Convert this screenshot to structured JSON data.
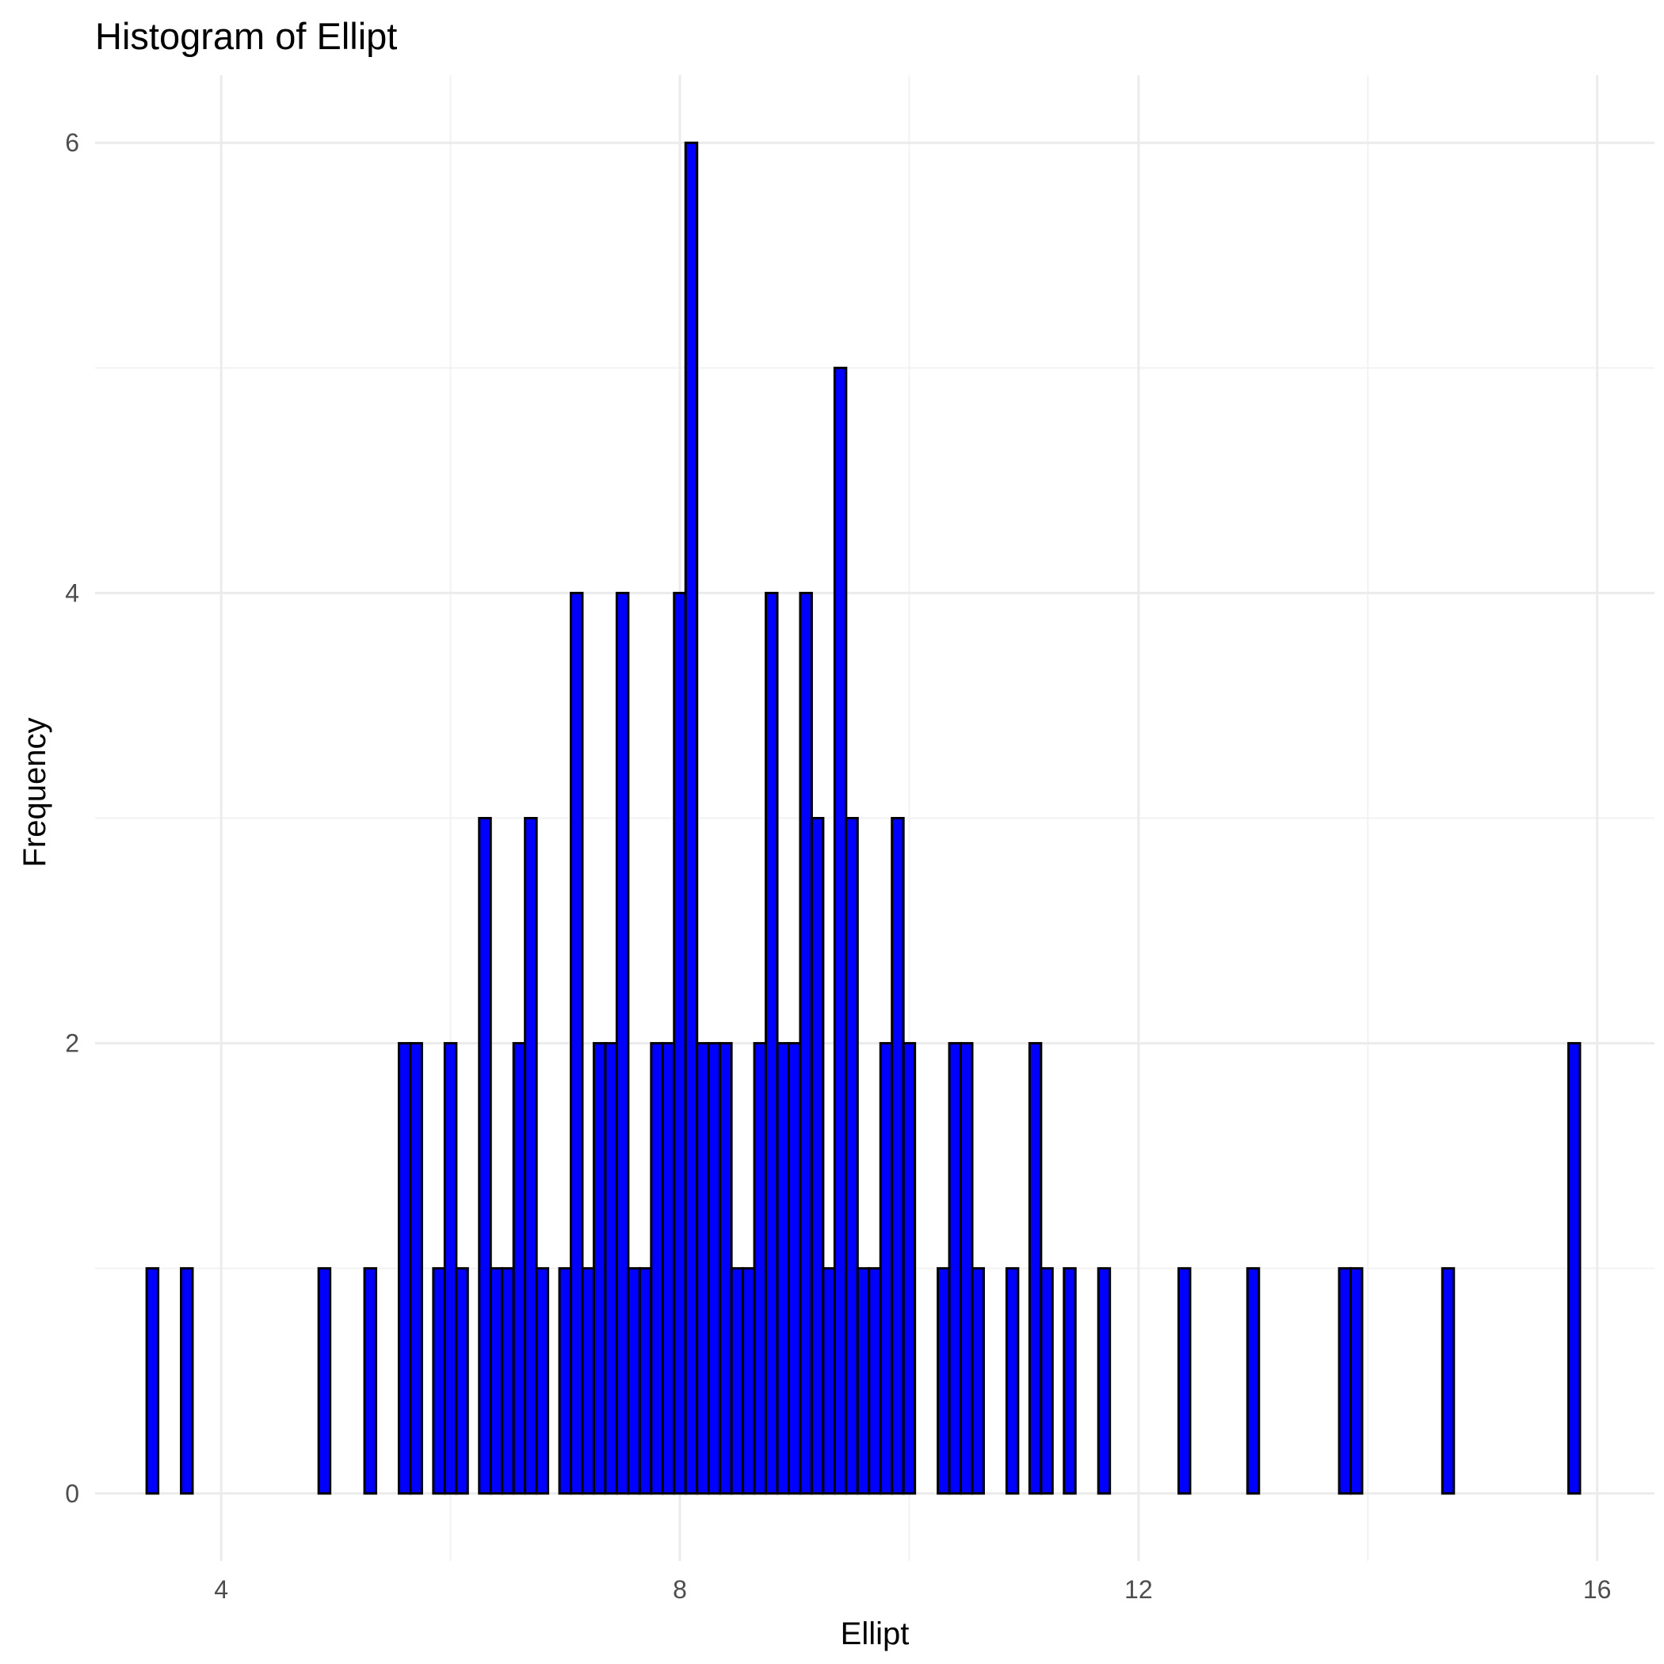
{
  "chart_data": {
    "type": "bar",
    "title": "Histogram of Ellipt",
    "xlabel": "Ellipt",
    "ylabel": "Frequency",
    "bar_fill": "#0000ff",
    "bar_outline": "#000000",
    "grid_color": "#ebebeb",
    "grid": true,
    "xlim": [
      2.9,
      16.5
    ],
    "ylim": [
      -0.3,
      6.3
    ],
    "x_ticks": [
      4,
      8,
      12,
      16
    ],
    "x_tick_labels": [
      "4",
      "8",
      "12",
      "16"
    ],
    "x_minor_ticks": [
      6,
      10,
      14
    ],
    "y_ticks": [
      0,
      2,
      4,
      6
    ],
    "y_tick_labels": [
      "0",
      "2",
      "4",
      "6"
    ],
    "y_minor_ticks": [
      1,
      3,
      5
    ],
    "bin_width": 0.1,
    "bin_start": 3.35,
    "counts": [
      1,
      0,
      0,
      1,
      0,
      0,
      0,
      0,
      0,
      0,
      0,
      0,
      0,
      0,
      0,
      1,
      0,
      0,
      0,
      1,
      0,
      0,
      2,
      2,
      0,
      1,
      2,
      1,
      0,
      3,
      1,
      1,
      2,
      3,
      1,
      0,
      1,
      4,
      1,
      2,
      2,
      4,
      1,
      1,
      2,
      2,
      4,
      6,
      2,
      2,
      2,
      1,
      1,
      2,
      4,
      2,
      2,
      4,
      3,
      1,
      5,
      3,
      1,
      1,
      2,
      3,
      2,
      0,
      0,
      1,
      2,
      2,
      1,
      0,
      0,
      1,
      0,
      2,
      1,
      0,
      1,
      0,
      0,
      1,
      0,
      0,
      0,
      0,
      0,
      0,
      1,
      0,
      0,
      0,
      0,
      0,
      1,
      0,
      0,
      0,
      0,
      0,
      0,
      0,
      1,
      1,
      0,
      0,
      0,
      0,
      0,
      0,
      0,
      1,
      0,
      0,
      0,
      0,
      0,
      0,
      0,
      0,
      0,
      0,
      2
    ]
  }
}
